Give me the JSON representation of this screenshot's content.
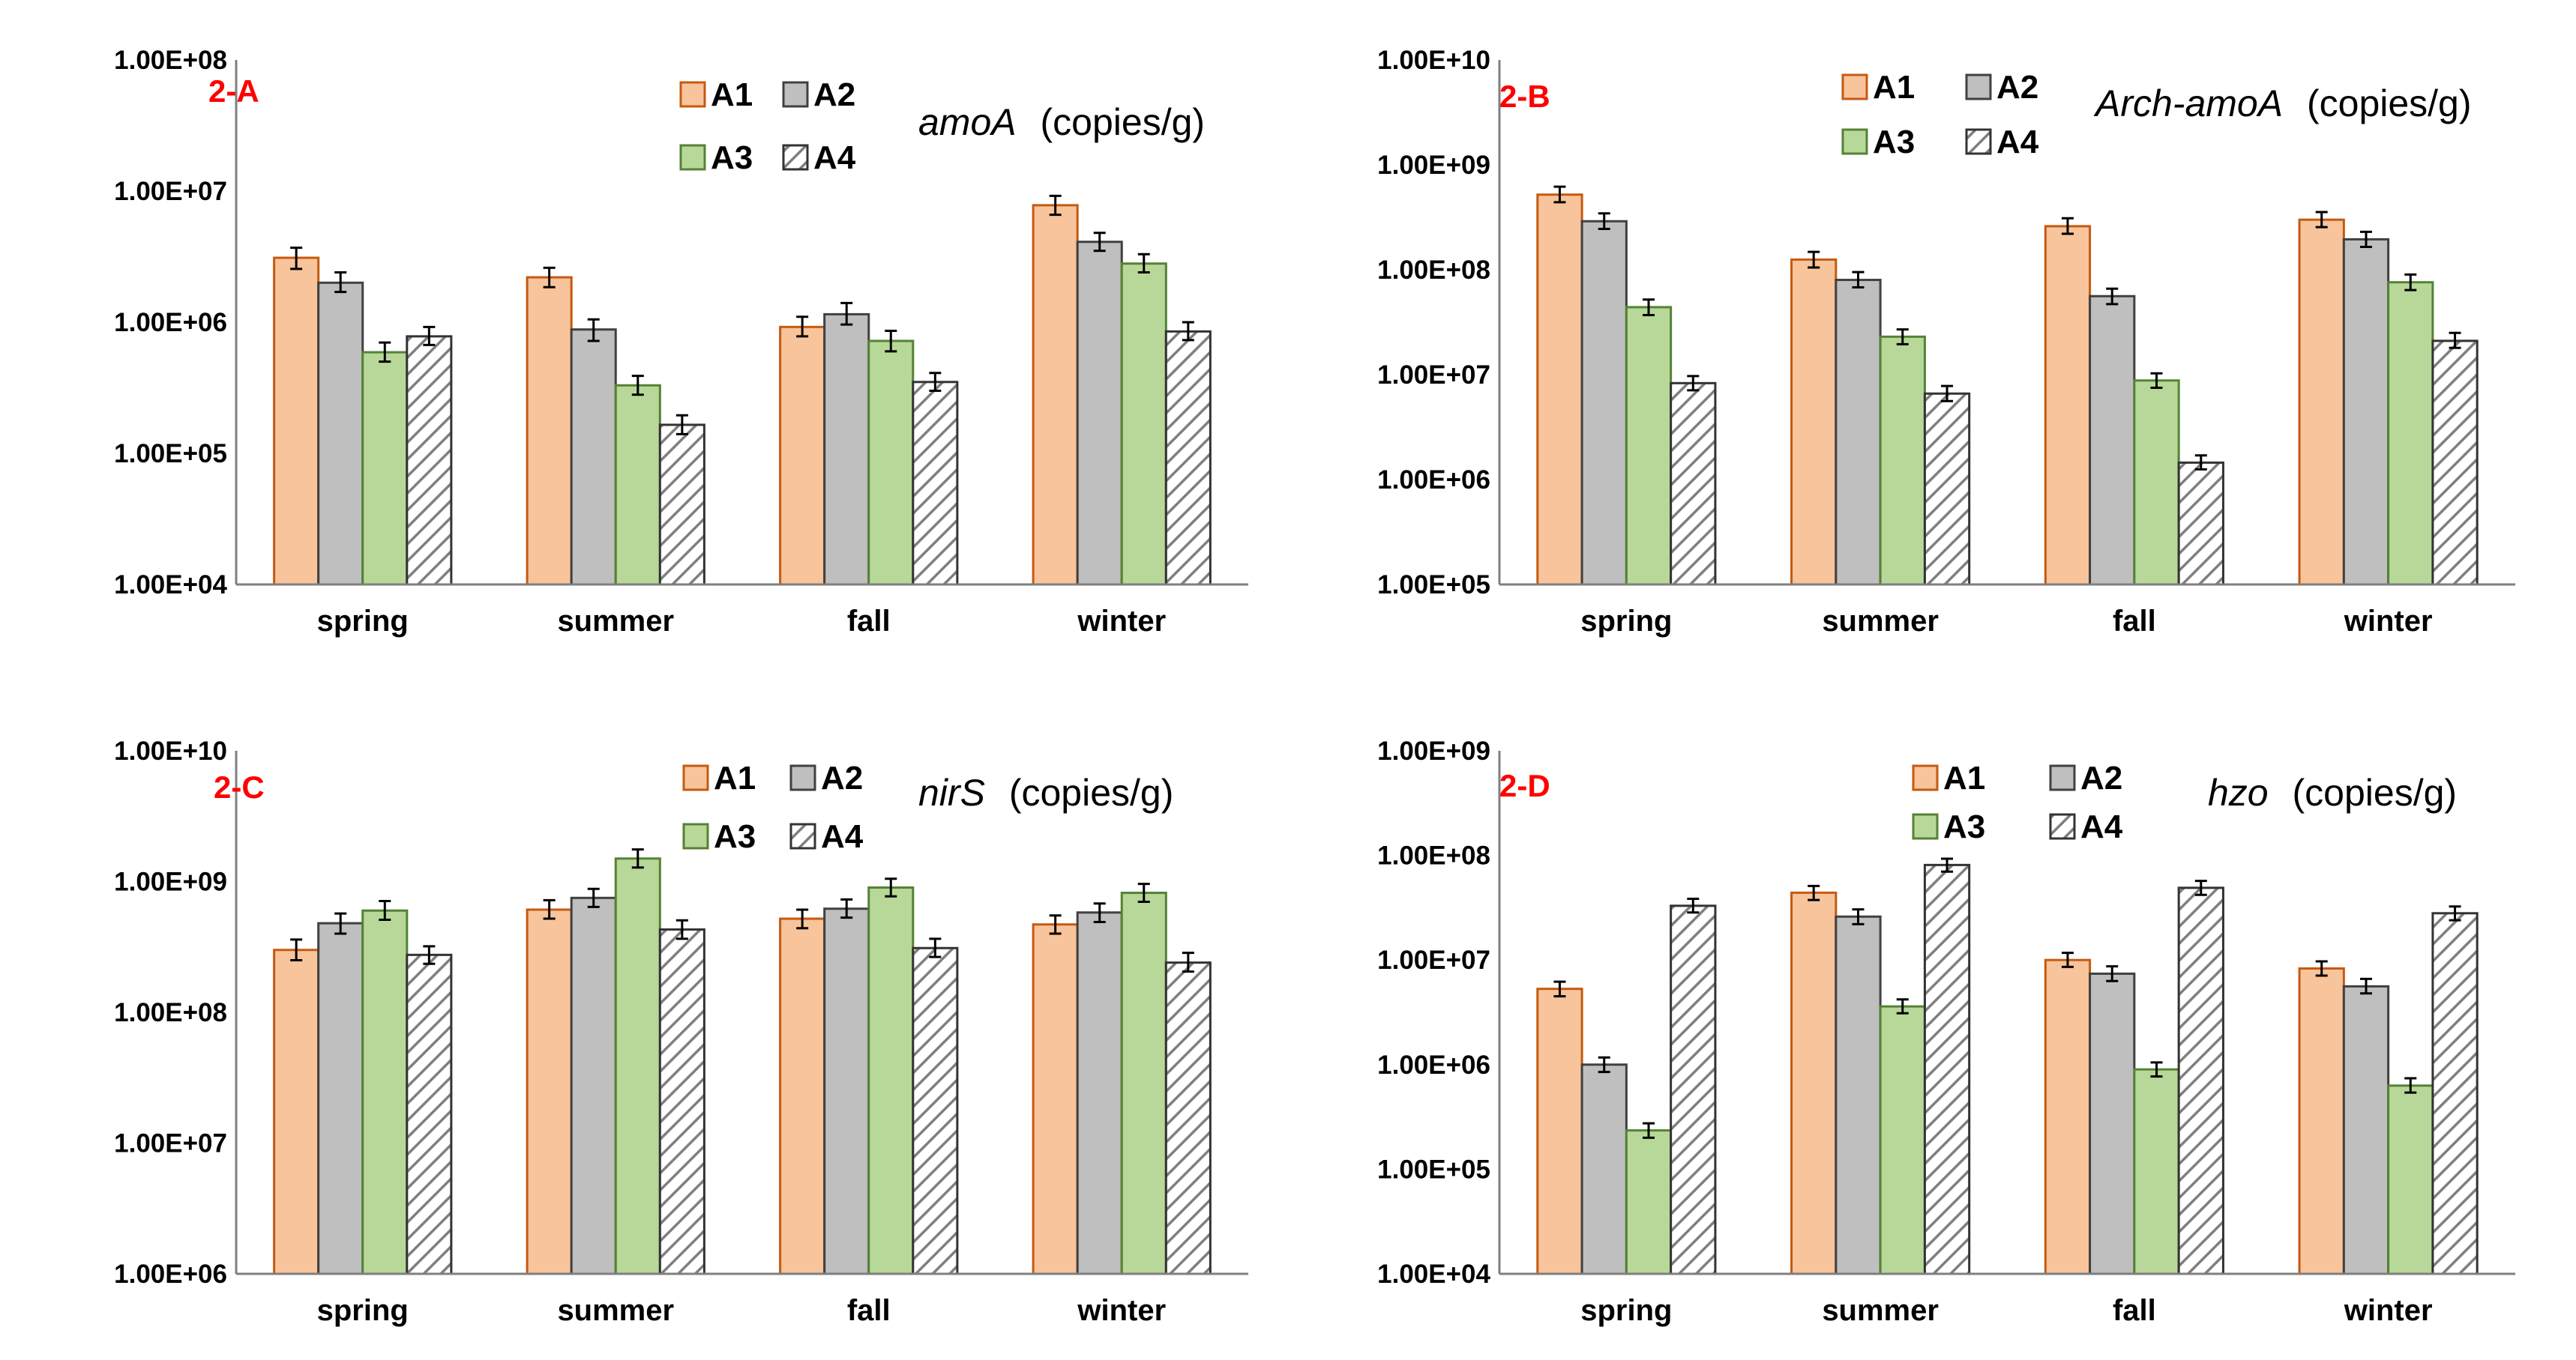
{
  "colors": {
    "A1_fill": "#f8c49b",
    "A1_stroke": "#c55a11",
    "A2_fill": "#bfbfbf",
    "A2_stroke": "#404040",
    "A3_fill": "#b8d89a",
    "A3_stroke": "#548235",
    "A4_fill": "#ffffff",
    "A4_stroke": "#333333",
    "A4_hatch": "#7f7f7f"
  },
  "chart_data": [
    {
      "id": "2-A",
      "type": "bar",
      "title_gene": "amoA",
      "title_unit": "(copies/g)",
      "yscale": "log",
      "ylim": [
        10000,
        100000000
      ],
      "yticks": [
        "1.00E+04",
        "1.00E+05",
        "1.00E+06",
        "1.00E+07",
        "1.00E+08"
      ],
      "categories": [
        "spring",
        "summer",
        "fall",
        "winter"
      ],
      "series": [
        {
          "name": "A1",
          "values": [
            3100000,
            2200000,
            920000,
            7800000
          ],
          "err_low": [
            2550000,
            1850000,
            780000,
            6600000
          ],
          "err_high": [
            3700000,
            2600000,
            1100000,
            9200000
          ]
        },
        {
          "name": "A2",
          "values": [
            2000000,
            880000,
            1150000,
            4100000
          ],
          "err_low": [
            1700000,
            720000,
            960000,
            3500000
          ],
          "err_high": [
            2400000,
            1050000,
            1400000,
            4800000
          ]
        },
        {
          "name": "A3",
          "values": [
            590000,
            330000,
            720000,
            2800000
          ],
          "err_low": [
            500000,
            280000,
            600000,
            2400000
          ],
          "err_high": [
            700000,
            390000,
            860000,
            3300000
          ]
        },
        {
          "name": "A4",
          "values": [
            780000,
            165000,
            350000,
            850000
          ],
          "err_low": [
            670000,
            140000,
            300000,
            730000
          ],
          "err_high": [
            920000,
            195000,
            410000,
            1000000
          ]
        }
      ]
    },
    {
      "id": "2-B",
      "type": "bar",
      "title_gene": "Arch-amoA",
      "title_unit": "(copies/g)",
      "yscale": "log",
      "ylim": [
        100000,
        10000000000
      ],
      "yticks": [
        "1.00E+05",
        "1.00E+06",
        "1.00E+07",
        "1.00E+08",
        "1.00E+09",
        "1.00E+10"
      ],
      "categories": [
        "spring",
        "summer",
        "fall",
        "winter"
      ],
      "series": [
        {
          "name": "A1",
          "values": [
            520000000,
            125000000,
            260000000,
            300000000
          ],
          "err_low": [
            440000000,
            105000000,
            220000000,
            255000000
          ],
          "err_high": [
            620000000,
            148000000,
            310000000,
            355000000
          ]
        },
        {
          "name": "A2",
          "values": [
            290000000,
            80000000,
            56000000,
            195000000
          ],
          "err_low": [
            245000000,
            68000000,
            47000000,
            165000000
          ],
          "err_high": [
            345000000,
            95000000,
            66000000,
            230000000
          ]
        },
        {
          "name": "A3",
          "values": [
            44000000,
            23000000,
            8800000,
            76000000
          ],
          "err_low": [
            37000000,
            19500000,
            7500000,
            64000000
          ],
          "err_high": [
            52000000,
            27000000,
            10300000,
            90000000
          ]
        },
        {
          "name": "A4",
          "values": [
            8300000,
            6600000,
            1450000,
            21000000
          ],
          "err_low": [
            7100000,
            5600000,
            1250000,
            18000000
          ],
          "err_high": [
            9700000,
            7800000,
            1700000,
            25000000
          ]
        }
      ]
    },
    {
      "id": "2-C",
      "type": "bar",
      "title_gene": "nirS",
      "title_unit": "(copies/g)",
      "yscale": "log",
      "ylim": [
        1000000,
        10000000000
      ],
      "yticks": [
        "1.00E+06",
        "1.00E+07",
        "1.00E+08",
        "1.00E+09",
        "1.00E+10"
      ],
      "categories": [
        "spring",
        "summer",
        "fall",
        "winter"
      ],
      "series": [
        {
          "name": "A1",
          "values": [
            300000000,
            610000000,
            520000000,
            470000000
          ],
          "err_low": [
            250000000,
            520000000,
            440000000,
            400000000
          ],
          "err_high": [
            360000000,
            720000000,
            610000000,
            550000000
          ]
        },
        {
          "name": "A2",
          "values": [
            480000000,
            750000000,
            620000000,
            580000000
          ],
          "err_low": [
            400000000,
            640000000,
            530000000,
            490000000
          ],
          "err_high": [
            570000000,
            880000000,
            730000000,
            680000000
          ]
        },
        {
          "name": "A3",
          "values": [
            600000000,
            1500000000,
            900000000,
            820000000
          ],
          "err_low": [
            510000000,
            1280000000,
            770000000,
            700000000
          ],
          "err_high": [
            710000000,
            1760000000,
            1050000000,
            960000000
          ]
        },
        {
          "name": "A4",
          "values": [
            275000000,
            430000000,
            310000000,
            240000000
          ],
          "err_low": [
            235000000,
            365000000,
            265000000,
            205000000
          ],
          "err_high": [
            320000000,
            505000000,
            365000000,
            285000000
          ]
        }
      ]
    },
    {
      "id": "2-D",
      "type": "bar",
      "title_gene": "hzo",
      "title_unit": "(copies/g)",
      "yscale": "log",
      "ylim": [
        10000,
        1000000000
      ],
      "yticks": [
        "1.00E+04",
        "1.00E+05",
        "1.00E+06",
        "1.00E+07",
        "1.00E+08",
        "1.00E+09"
      ],
      "categories": [
        "spring",
        "summer",
        "fall",
        "winter"
      ],
      "series": [
        {
          "name": "A1",
          "values": [
            5300000,
            44000000,
            10000000,
            8300000
          ],
          "err_low": [
            4500000,
            37500000,
            8600000,
            7100000
          ],
          "err_high": [
            6200000,
            51000000,
            11700000,
            9700000
          ]
        },
        {
          "name": "A2",
          "values": [
            1000000,
            26000000,
            7400000,
            5600000
          ],
          "err_low": [
            850000,
            22000000,
            6300000,
            4800000
          ],
          "err_high": [
            1170000,
            30500000,
            8700000,
            6600000
          ]
        },
        {
          "name": "A3",
          "values": [
            235000,
            3600000,
            900000,
            630000
          ],
          "err_low": [
            200000,
            3100000,
            770000,
            540000
          ],
          "err_high": [
            275000,
            4200000,
            1050000,
            740000
          ]
        },
        {
          "name": "A4",
          "values": [
            33000000,
            81000000,
            49000000,
            28000000
          ],
          "err_low": [
            28500000,
            70000000,
            42000000,
            24000000
          ],
          "err_high": [
            38500000,
            93000000,
            57000000,
            32500000
          ]
        }
      ]
    }
  ]
}
